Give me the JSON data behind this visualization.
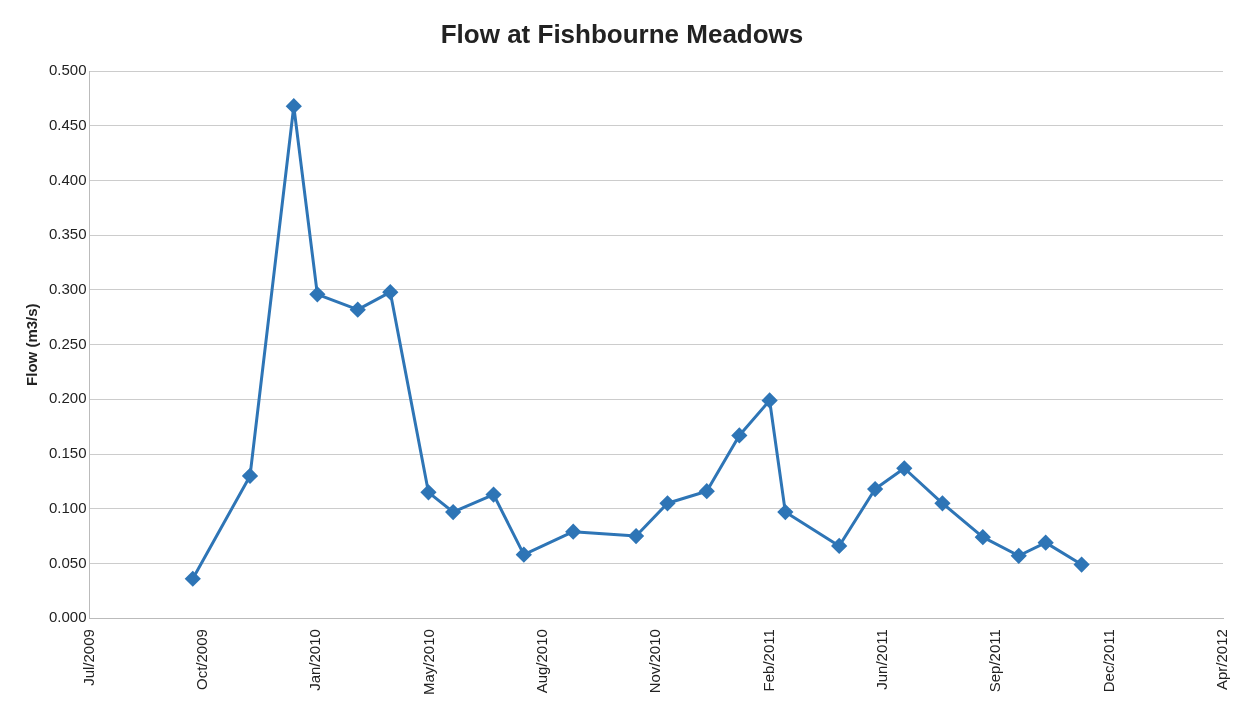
{
  "chart_data": {
    "type": "line",
    "title": "Flow at Fishbourne Meadows",
    "ylabel": "Flow (m3/s)",
    "x": [
      "2009-10-02",
      "2009-11-22",
      "2009-12-31",
      "2010-01-21",
      "2010-02-26",
      "2010-03-27",
      "2010-04-30",
      "2010-05-22",
      "2010-06-27",
      "2010-07-24",
      "2010-09-06",
      "2010-11-01",
      "2010-11-29",
      "2011-01-03",
      "2011-02-01",
      "2011-02-28",
      "2011-03-14",
      "2011-05-01",
      "2011-06-02",
      "2011-06-28",
      "2011-08-01",
      "2011-09-06",
      "2011-10-08",
      "2011-11-01",
      "2011-12-03"
    ],
    "series": [
      {
        "color": "#2e75b6",
        "values": [
          0.036,
          0.13,
          0.468,
          0.296,
          0.282,
          0.298,
          0.115,
          0.097,
          0.113,
          0.058,
          0.079,
          0.075,
          0.105,
          0.116,
          0.167,
          0.199,
          0.097,
          0.066,
          0.118,
          0.137,
          0.105,
          0.074,
          0.057,
          0.069,
          0.049
        ]
      }
    ],
    "xlim": [
      "2009-07-02",
      "2012-04-07"
    ],
    "xticks": [
      {
        "value": "2009-07-02",
        "label": "Jul/2009"
      },
      {
        "value": "2009-10-11",
        "label": "Oct/2009"
      },
      {
        "value": "2010-01-20",
        "label": "Jan/2010"
      },
      {
        "value": "2010-05-01",
        "label": "May/2010"
      },
      {
        "value": "2010-08-10",
        "label": "Aug/2010"
      },
      {
        "value": "2010-11-19",
        "label": "Nov/2010"
      },
      {
        "value": "2011-02-28",
        "label": "Feb/2011"
      },
      {
        "value": "2011-06-09",
        "label": "Jun/2011"
      },
      {
        "value": "2011-09-18",
        "label": "Sep/2011"
      },
      {
        "value": "2011-12-28",
        "label": "Dec/2011"
      },
      {
        "value": "2012-04-07",
        "label": "Apr/2012"
      }
    ],
    "ylim": [
      0,
      0.5
    ],
    "yticks": [
      {
        "value": 0,
        "label": "0.000"
      },
      {
        "value": 0.05,
        "label": "0.050"
      },
      {
        "value": 0.1,
        "label": "0.100"
      },
      {
        "value": 0.15,
        "label": "0.150"
      },
      {
        "value": 0.2,
        "label": "0.200"
      },
      {
        "value": 0.25,
        "label": "0.250"
      },
      {
        "value": 0.3,
        "label": "0.300"
      },
      {
        "value": 0.35,
        "label": "0.350"
      },
      {
        "value": 0.4,
        "label": "0.400"
      },
      {
        "value": 0.45,
        "label": "0.450"
      },
      {
        "value": 0.5,
        "label": "0.500"
      }
    ],
    "grid": "y",
    "legend": false,
    "marker": "diamond",
    "line_style": "solid"
  }
}
